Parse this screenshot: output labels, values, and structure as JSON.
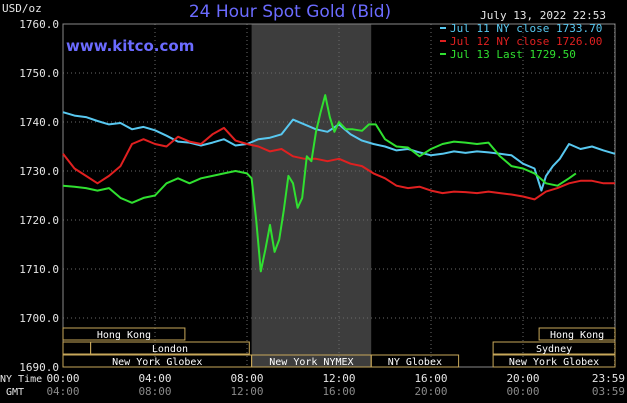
{
  "header": {
    "title": "24 Hour Spot Gold (Bid)",
    "units": "USD/oz",
    "datetime": "July 13, 2022 22:53",
    "website": "www.kitco.com"
  },
  "colors": {
    "background": "#000000",
    "title": "#6b6bff",
    "website": "#6b6bff",
    "axis_text": "#e6e6e6",
    "grid": "#6a6a6a",
    "shade": "#3d3d3d",
    "session_border": "#c8a85a",
    "session_text": "#ffffff"
  },
  "axis_footer": {
    "ny_time_label": "NY Time",
    "gmt_label": "GMT"
  },
  "chart_data": {
    "type": "line",
    "title": "24 Hour Spot Gold (Bid)",
    "ylabel": "USD/oz",
    "ylim": [
      1690,
      1760
    ],
    "xlim": [
      0,
      24
    ],
    "grid": true,
    "legend_position": "top-right",
    "y_ticks": [
      "1690.0",
      "1700.0",
      "1710.0",
      "1720.0",
      "1730.0",
      "1740.0",
      "1750.0",
      "1760.0"
    ],
    "x_ticks": [
      {
        "x": 0,
        "ny": "00:00",
        "gmt": "04:00"
      },
      {
        "x": 4,
        "ny": "04:00",
        "gmt": "08:00"
      },
      {
        "x": 8,
        "ny": "08:00",
        "gmt": "12:00"
      },
      {
        "x": 12,
        "ny": "12:00",
        "gmt": "16:00"
      },
      {
        "x": 16,
        "ny": "16:00",
        "gmt": "20:00"
      },
      {
        "x": 20,
        "ny": "20:00",
        "gmt": "00:00"
      },
      {
        "x": 23.983,
        "ny": "23:59",
        "gmt": "03:59"
      }
    ],
    "shaded_region": [
      8.2,
      13.4
    ],
    "series": [
      {
        "name": "Jul 11 NY close",
        "label": "Jul 11 NY close 1733.70",
        "color": "#58c8f0",
        "x": [
          0,
          0.5,
          1,
          1.5,
          2,
          2.5,
          3,
          3.5,
          4,
          4.5,
          5,
          5.5,
          6,
          6.5,
          7,
          7.5,
          8,
          8.5,
          9,
          9.5,
          10,
          10.5,
          11,
          11.5,
          12,
          12.5,
          13,
          13.5,
          14,
          14.5,
          15,
          15.5,
          16,
          16.5,
          17,
          17.5,
          18,
          18.5,
          19,
          19.5,
          20,
          20.5,
          20.8,
          21,
          21.3,
          21.6,
          22,
          22.5,
          23,
          23.5,
          24
        ],
        "values": [
          1742,
          1741.3,
          1741,
          1740.2,
          1739.5,
          1739.8,
          1738.5,
          1739,
          1738.3,
          1737.2,
          1736,
          1735.8,
          1735.2,
          1735.8,
          1736.5,
          1735.2,
          1735.5,
          1736.5,
          1736.8,
          1737.5,
          1740.5,
          1739.5,
          1738.5,
          1738,
          1739.5,
          1737.5,
          1736.2,
          1735.5,
          1735,
          1734.2,
          1734.5,
          1733.8,
          1733.2,
          1733.5,
          1734,
          1733.7,
          1734,
          1733.8,
          1733.5,
          1733.2,
          1731.5,
          1730.5,
          1726,
          1729,
          1731,
          1732.5,
          1735.5,
          1734.5,
          1735,
          1734.2,
          1733.5
        ]
      },
      {
        "name": "Jul 12 NY close",
        "label": "Jul 12 NY close 1726.00",
        "color": "#e02020",
        "x": [
          0,
          0.5,
          1,
          1.5,
          2,
          2.5,
          3,
          3.5,
          4,
          4.5,
          5,
          5.5,
          6,
          6.5,
          7,
          7.5,
          8,
          8.5,
          9,
          9.5,
          10,
          10.5,
          11,
          11.5,
          12,
          12.5,
          13,
          13.5,
          14,
          14.5,
          15,
          15.5,
          16,
          16.5,
          17,
          17.5,
          18,
          18.5,
          19,
          19.5,
          20,
          20.5,
          21,
          21.5,
          22,
          22.5,
          23,
          23.5,
          24
        ],
        "values": [
          1733.5,
          1730.5,
          1729,
          1727.5,
          1729,
          1731,
          1735.5,
          1736.5,
          1735.5,
          1735,
          1737,
          1736,
          1735.5,
          1737.5,
          1738.8,
          1736.2,
          1735.5,
          1735,
          1734,
          1734.5,
          1733,
          1732.5,
          1732.5,
          1732,
          1732.5,
          1731.5,
          1731,
          1729.5,
          1728.5,
          1727,
          1726.5,
          1726.8,
          1726,
          1725.5,
          1725.8,
          1725.7,
          1725.5,
          1725.8,
          1725.5,
          1725.2,
          1724.8,
          1724.2,
          1725.8,
          1726.5,
          1727.5,
          1728,
          1728,
          1727.5,
          1727.5
        ]
      },
      {
        "name": "Jul 13 Last",
        "label": "Jul 13 Last 1729.50",
        "color": "#30e030",
        "x": [
          0,
          0.5,
          1,
          1.5,
          2,
          2.5,
          3,
          3.5,
          4,
          4.5,
          5,
          5.5,
          6,
          6.5,
          7,
          7.5,
          8,
          8.2,
          8.4,
          8.6,
          8.8,
          9,
          9.2,
          9.4,
          9.6,
          9.8,
          10,
          10.2,
          10.4,
          10.6,
          10.8,
          11,
          11.2,
          11.4,
          11.6,
          11.8,
          12,
          12.3,
          12.6,
          13,
          13.3,
          13.6,
          14,
          14.5,
          15,
          15.5,
          16,
          16.5,
          17,
          17.5,
          18,
          18.5,
          19,
          19.5,
          20,
          20.5,
          21,
          21.5,
          22,
          22.3
        ],
        "values": [
          1727,
          1726.8,
          1726.5,
          1726,
          1726.5,
          1724.5,
          1723.5,
          1724.5,
          1725,
          1727.5,
          1728.5,
          1727.5,
          1728.5,
          1729,
          1729.5,
          1730,
          1729.5,
          1728.5,
          1720,
          1709.5,
          1714,
          1719,
          1713.5,
          1716,
          1722,
          1729,
          1727.5,
          1722.5,
          1724.5,
          1733,
          1732,
          1738,
          1742,
          1745.5,
          1741,
          1738,
          1740,
          1738.5,
          1738.5,
          1738.2,
          1739.5,
          1739.5,
          1736.5,
          1735,
          1734.8,
          1733,
          1734.5,
          1735.5,
          1736,
          1735.8,
          1735.5,
          1735.8,
          1733,
          1731,
          1730.5,
          1729.5,
          1727.5,
          1727,
          1728.5,
          1729.5
        ]
      }
    ],
    "sessions": [
      {
        "label": "Hong Kong",
        "start": 0,
        "end": 5.3,
        "row": 0
      },
      {
        "label": "Hong Kong",
        "start": 20.7,
        "end": 24,
        "row": 0
      },
      {
        "label": "",
        "start": 0,
        "end": 1.2,
        "row": 1
      },
      {
        "label": "London",
        "start": 1.2,
        "end": 8.1,
        "row": 1
      },
      {
        "label": "Sydney",
        "start": 18.7,
        "end": 24,
        "row": 1
      },
      {
        "label": "New York Globex",
        "start": 0,
        "end": 8.2,
        "row": 2
      },
      {
        "label": "New York NYMEX",
        "start": 8.2,
        "end": 13.4,
        "row": 2
      },
      {
        "label": "NY Globex",
        "start": 13.4,
        "end": 17.2,
        "row": 2
      },
      {
        "label": "New York Globex",
        "start": 18.7,
        "end": 24,
        "row": 2
      }
    ]
  }
}
